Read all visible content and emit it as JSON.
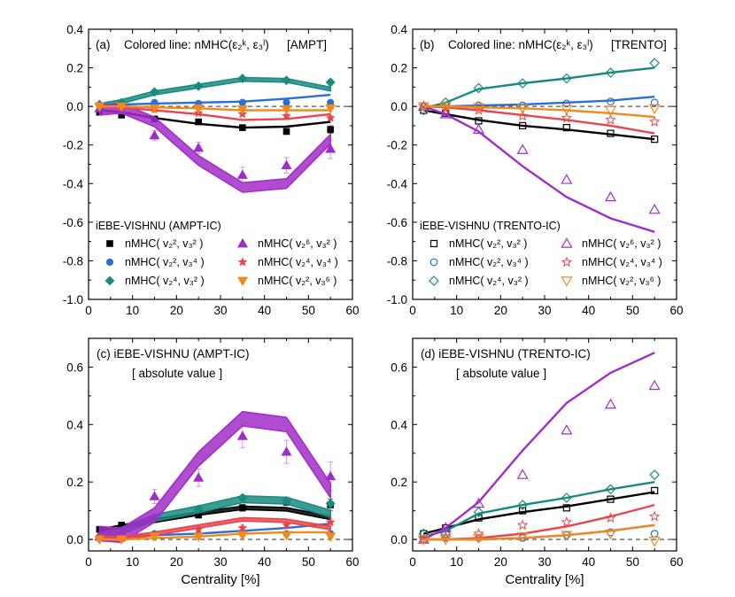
{
  "figure": {
    "x_axis_title": "Centrality [%]",
    "series_meta": [
      {
        "id": "v2v3",
        "color": "#000000",
        "label": "nMHC( v₂², v₃² )"
      },
      {
        "id": "v2v4",
        "color": "#2b70d4",
        "label": "nMHC( v₂², v₃⁴ )"
      },
      {
        "id": "v4v2",
        "color": "#1a8a80",
        "label": "nMHC( v₂⁴, v₃² )"
      },
      {
        "id": "v6v2",
        "color": "#a12dc8",
        "label": "nMHC( v₂⁶, v₃² )"
      },
      {
        "id": "v4v4",
        "color": "#e8464d",
        "label": "nMHC( v₂⁴, v₃⁴ )"
      },
      {
        "id": "v2v6",
        "color": "#f08a1c",
        "label": "nMHC( v₂², v₃⁶ )"
      }
    ]
  },
  "chart_data": [
    {
      "panel": "a",
      "type": "line",
      "title_prefix": "(a)",
      "title": "Colored line: nMHC(ε₂ᵏ, ε₃ˡ)",
      "title_tag": "[AMPT]",
      "legend_title": "iEBE-VISHNU (AMPT-IC)",
      "marker_style": "filled",
      "xlim": [
        0,
        60
      ],
      "ylim": [
        -1.0,
        0.4
      ],
      "xticks": [
        "0",
        "10",
        "20",
        "30",
        "40",
        "50",
        "60"
      ],
      "yticks": [
        "-1.0",
        "-0.8",
        "-0.6",
        "-0.4",
        "-0.2",
        "0.0",
        "0.2",
        "0.4"
      ],
      "xlabel": "",
      "ylabel": "",
      "line_x": [
        2.5,
        7.5,
        15,
        25,
        35,
        45,
        55
      ],
      "series": [
        {
          "id": "v2v3",
          "line": [
            -0.02,
            -0.03,
            -0.06,
            -0.09,
            -0.11,
            -0.105,
            -0.08
          ],
          "band": 0,
          "points": [
            -0.03,
            -0.045,
            -0.065,
            -0.08,
            -0.11,
            -0.13,
            -0.12
          ],
          "errors": [
            0.005,
            0.005,
            0.008,
            0.01,
            0.012,
            0.012,
            0.02
          ]
        },
        {
          "id": "v2v4",
          "line": [
            0.01,
            0.01,
            0.015,
            0.02,
            0.025,
            0.04,
            0.06
          ],
          "band": 0,
          "points": [
            0.005,
            0.02,
            0.02,
            0.015,
            0.02,
            0.02,
            0.02
          ],
          "errors": [
            0.005,
            0.005,
            0.005,
            0.005,
            0.006,
            0.006,
            0.01
          ]
        },
        {
          "id": "v4v2",
          "line": [
            0.005,
            0.025,
            0.07,
            0.105,
            0.14,
            0.135,
            0.09
          ],
          "band": 0.01,
          "points": [
            0.01,
            0.02,
            0.075,
            0.105,
            0.145,
            0.135,
            0.125
          ],
          "errors": [
            0.005,
            0.005,
            0.01,
            0.01,
            0.01,
            0.012,
            0.015
          ]
        },
        {
          "id": "v6v2",
          "line": [
            -0.02,
            -0.01,
            -0.08,
            -0.28,
            -0.42,
            -0.4,
            -0.17
          ],
          "band": 0.025,
          "points": [
            -0.01,
            -0.02,
            -0.15,
            -0.215,
            -0.355,
            -0.305,
            -0.22
          ],
          "errors": [
            0.01,
            0.01,
            0.025,
            0.03,
            0.04,
            0.04,
            0.05
          ]
        },
        {
          "id": "v4v4",
          "line": [
            0.005,
            -0.005,
            -0.02,
            -0.04,
            -0.07,
            -0.065,
            -0.04
          ],
          "band": 0,
          "points": [
            0.005,
            -0.005,
            -0.015,
            -0.035,
            -0.04,
            -0.05,
            -0.06
          ],
          "errors": [
            0.005,
            0.005,
            0.005,
            0.008,
            0.01,
            0.01,
            0.012
          ]
        },
        {
          "id": "v2v6",
          "line": [
            0.0,
            0.0,
            -0.005,
            -0.01,
            -0.02,
            -0.02,
            -0.02
          ],
          "band": 0,
          "points": [
            0.0,
            0.0,
            -0.01,
            -0.01,
            -0.015,
            -0.015,
            -0.01
          ],
          "errors": [
            0.004,
            0.004,
            0.004,
            0.005,
            0.005,
            0.005,
            0.006
          ]
        }
      ]
    },
    {
      "panel": "b",
      "type": "line",
      "title_prefix": "(b)",
      "title": "Colored line: nMHC(ε₂ᵏ, ε₃ˡ)",
      "title_tag": "[TRENTO]",
      "legend_title": "iEBE-VISHNU (TRENTO-IC)",
      "marker_style": "open",
      "xlim": [
        0,
        60
      ],
      "ylim": [
        -1.0,
        0.4
      ],
      "xticks": [
        "0",
        "10",
        "20",
        "30",
        "40",
        "50",
        "60"
      ],
      "yticks": [
        "-1.0",
        "-0.8",
        "-0.6",
        "-0.4",
        "-0.2",
        "0.0",
        "0.2",
        "0.4"
      ],
      "xlabel": "",
      "ylabel": "",
      "line_x": [
        2.5,
        7.5,
        15,
        25,
        35,
        45,
        55
      ],
      "series": [
        {
          "id": "v2v3",
          "line": [
            -0.02,
            -0.04,
            -0.07,
            -0.1,
            -0.12,
            -0.145,
            -0.17
          ],
          "band": 0,
          "points": [
            -0.02,
            -0.035,
            -0.075,
            -0.1,
            -0.11,
            -0.14,
            -0.17
          ],
          "errors": [
            0,
            0,
            0,
            0,
            0,
            0,
            0
          ]
        },
        {
          "id": "v2v4",
          "line": [
            0.0,
            0.0,
            0.005,
            0.01,
            0.02,
            0.03,
            0.05
          ],
          "band": 0,
          "points": [
            0.0,
            0.005,
            0.005,
            0.005,
            0.015,
            0.025,
            0.02
          ],
          "errors": [
            0,
            0,
            0,
            0,
            0,
            0,
            0
          ]
        },
        {
          "id": "v4v2",
          "line": [
            -0.01,
            0.02,
            0.09,
            0.12,
            0.145,
            0.175,
            0.2
          ],
          "band": 0,
          "points": [
            -0.02,
            0.02,
            0.095,
            0.12,
            0.145,
            0.175,
            0.225
          ],
          "errors": [
            0,
            0,
            0,
            0,
            0,
            0,
            0
          ]
        },
        {
          "id": "v6v2",
          "line": [
            0.0,
            -0.04,
            -0.13,
            -0.31,
            -0.47,
            -0.58,
            -0.65
          ],
          "band": 0,
          "points": [
            0.0,
            -0.04,
            -0.12,
            -0.225,
            -0.38,
            -0.47,
            -0.535
          ],
          "errors": [
            0,
            0,
            0,
            0,
            0,
            0,
            0
          ]
        },
        {
          "id": "v4v4",
          "line": [
            0.0,
            -0.005,
            -0.02,
            -0.045,
            -0.07,
            -0.1,
            -0.14
          ],
          "band": 0,
          "points": [
            0.0,
            -0.01,
            -0.02,
            -0.05,
            -0.06,
            -0.07,
            -0.08
          ],
          "errors": [
            0,
            0,
            0,
            0,
            0,
            0,
            0
          ]
        },
        {
          "id": "v2v6",
          "line": [
            0.0,
            0.0,
            -0.005,
            -0.01,
            -0.02,
            -0.035,
            -0.055
          ],
          "band": 0,
          "points": [
            0.0,
            0.0,
            -0.005,
            -0.01,
            -0.015,
            -0.02,
            -0.01
          ],
          "errors": [
            0,
            0,
            0,
            0,
            0,
            0,
            0
          ]
        }
      ]
    },
    {
      "panel": "c",
      "type": "line",
      "title": "(c)  iEBE-VISHNU (AMPT-IC)",
      "subtitle": "[ absolute value ]",
      "marker_style": "filled",
      "xlim": [
        0,
        60
      ],
      "ylim": [
        -0.04,
        0.7
      ],
      "xticks": [
        "0",
        "10",
        "20",
        "30",
        "40",
        "50",
        "60"
      ],
      "yticks": [
        "0.0",
        "0.2",
        "0.4",
        "0.6"
      ],
      "xlabel": "Centrality [%]",
      "ylabel": "",
      "line_x": [
        2.5,
        7.5,
        15,
        25,
        35,
        45,
        55
      ],
      "series": [
        {
          "id": "v2v3",
          "line": [
            0.03,
            0.045,
            0.065,
            0.09,
            0.11,
            0.105,
            0.075
          ],
          "band": 0.006,
          "points": [
            0.035,
            0.05,
            0.07,
            0.085,
            0.11,
            0.13,
            0.12
          ],
          "errors": [
            0.005,
            0.005,
            0.008,
            0.01,
            0.012,
            0.012,
            0.02
          ]
        },
        {
          "id": "v2v4",
          "line": [
            0.005,
            0.01,
            0.015,
            0.02,
            0.03,
            0.04,
            0.055
          ],
          "band": 0,
          "points": [
            0.005,
            0.02,
            0.02,
            0.015,
            0.02,
            0.02,
            0.02
          ],
          "errors": [
            0.005,
            0.005,
            0.005,
            0.005,
            0.006,
            0.006,
            0.01
          ]
        },
        {
          "id": "v4v2",
          "line": [
            0.01,
            0.03,
            0.075,
            0.105,
            0.14,
            0.135,
            0.09
          ],
          "band": 0.012,
          "points": [
            0.01,
            0.02,
            0.075,
            0.105,
            0.145,
            0.135,
            0.125
          ],
          "errors": [
            0.005,
            0.005,
            0.01,
            0.01,
            0.01,
            0.012,
            0.015
          ]
        },
        {
          "id": "v6v2",
          "line": [
            0.02,
            0.015,
            0.085,
            0.28,
            0.42,
            0.4,
            0.17
          ],
          "band": 0.025,
          "points": [
            0.01,
            0.02,
            0.15,
            0.215,
            0.36,
            0.305,
            0.22
          ],
          "errors": [
            0.01,
            0.01,
            0.025,
            0.03,
            0.04,
            0.04,
            0.05
          ]
        },
        {
          "id": "v4v4",
          "line": [
            0.005,
            0.005,
            0.02,
            0.045,
            0.07,
            0.065,
            0.04
          ],
          "band": 0.006,
          "points": [
            0.005,
            0.005,
            0.015,
            0.035,
            0.04,
            0.05,
            0.06
          ],
          "errors": [
            0.005,
            0.005,
            0.005,
            0.008,
            0.01,
            0.01,
            0.012
          ]
        },
        {
          "id": "v2v6",
          "line": [
            0.0,
            0.0,
            0.005,
            0.01,
            0.02,
            0.025,
            0.025
          ],
          "band": 0,
          "points": [
            0.0,
            0.0,
            0.01,
            0.01,
            0.015,
            0.015,
            0.01
          ],
          "errors": [
            0.004,
            0.004,
            0.004,
            0.005,
            0.005,
            0.005,
            0.006
          ]
        }
      ]
    },
    {
      "panel": "d",
      "type": "line",
      "title": "(d)  iEBE-VISHNU (TRENTO-IC)",
      "subtitle": "[ absolute value ]",
      "marker_style": "open",
      "xlim": [
        0,
        60
      ],
      "ylim": [
        -0.04,
        0.7
      ],
      "xticks": [
        "0",
        "10",
        "20",
        "30",
        "40",
        "50",
        "60"
      ],
      "yticks": [
        "0.0",
        "0.2",
        "0.4",
        "0.6"
      ],
      "xlabel": "Centrality [%]",
      "ylabel": "",
      "line_x": [
        2.5,
        7.5,
        15,
        25,
        35,
        45,
        55
      ],
      "series": [
        {
          "id": "v2v3",
          "line": [
            0.02,
            0.04,
            0.07,
            0.095,
            0.115,
            0.14,
            0.165
          ],
          "band": 0,
          "points": [
            0.02,
            0.04,
            0.075,
            0.1,
            0.11,
            0.14,
            0.17
          ],
          "errors": [
            0,
            0,
            0,
            0,
            0,
            0,
            0
          ]
        },
        {
          "id": "v2v4",
          "line": [
            0.0,
            0.0,
            0.0,
            0.005,
            0.015,
            0.03,
            0.05
          ],
          "band": 0,
          "points": [
            0.0,
            0.005,
            0.005,
            0.005,
            0.015,
            0.025,
            0.02
          ],
          "errors": [
            0,
            0,
            0,
            0,
            0,
            0,
            0
          ]
        },
        {
          "id": "v4v2",
          "line": [
            0.01,
            0.03,
            0.09,
            0.12,
            0.145,
            0.175,
            0.2
          ],
          "band": 0,
          "points": [
            0.02,
            0.02,
            0.095,
            0.12,
            0.145,
            0.175,
            0.225
          ],
          "errors": [
            0,
            0,
            0,
            0,
            0,
            0,
            0
          ]
        },
        {
          "id": "v6v2",
          "line": [
            0.0,
            0.04,
            0.13,
            0.31,
            0.475,
            0.58,
            0.65
          ],
          "band": 0,
          "points": [
            0.0,
            0.04,
            0.125,
            0.225,
            0.38,
            0.47,
            0.535
          ],
          "errors": [
            0,
            0,
            0,
            0,
            0,
            0,
            0
          ]
        },
        {
          "id": "v4v4",
          "line": [
            0.0,
            0.0,
            0.005,
            0.02,
            0.045,
            0.08,
            0.12
          ],
          "band": 0,
          "points": [
            0.0,
            0.01,
            0.02,
            0.05,
            0.06,
            0.075,
            0.08
          ],
          "errors": [
            0,
            0,
            0,
            0,
            0,
            0,
            0
          ]
        },
        {
          "id": "v2v6",
          "line": [
            0.0,
            0.0,
            0.0,
            0.005,
            0.015,
            0.03,
            0.05
          ],
          "band": 0,
          "points": [
            0.0,
            0.0,
            0.005,
            0.01,
            0.015,
            0.02,
            -0.005
          ],
          "errors": [
            0,
            0,
            0,
            0,
            0,
            0,
            0
          ]
        }
      ]
    }
  ]
}
